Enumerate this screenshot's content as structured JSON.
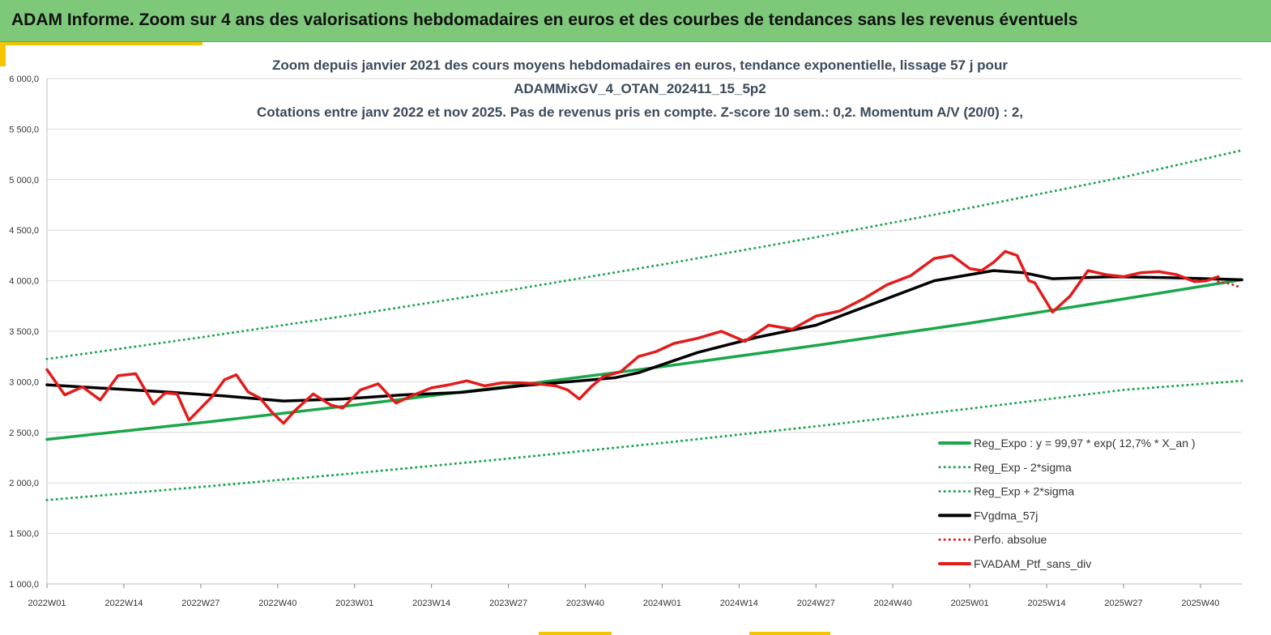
{
  "banner": {
    "title": "ADAM Informe. Zoom sur 4 ans des valorisations hebdomadaires en euros et des courbes de tendances sans les revenus éventuels"
  },
  "colors": {
    "banner_bg": "#7ec87a",
    "accent": "#f5c400",
    "green": "#1aa64a",
    "black": "#000000",
    "red": "#e31b1b"
  },
  "chart_data": {
    "type": "line",
    "title_lines": [
      "Zoom depuis janvier 2021 des cours moyens hebdomadaires  en euros, tendance exponentielle, lissage 57 j pour",
      "ADAMMixGV_4_OTAN_202411_15_5p2",
      "Cotations entre janv 2022 et nov 2025. Pas de revenus pris en compte. Z-score 10 sem.: 0,2. Momentum A/V (20/0) : 2,"
    ],
    "ylim": [
      1000,
      6000
    ],
    "y_ticks": [
      1000,
      1500,
      2000,
      2500,
      3000,
      3500,
      4000,
      4500,
      5000,
      5500,
      6000
    ],
    "y_tick_labels": [
      "1 000,0",
      "1 500,0",
      "2 000,0",
      "2 500,0",
      "3 000,0",
      "3 500,0",
      "4 000,0",
      "4 500,0",
      "5 000,0",
      "5 500,0",
      "6 000,0"
    ],
    "xlim": [
      0,
      202
    ],
    "x_ticks": [
      0,
      13,
      26,
      39,
      52,
      65,
      78,
      91,
      104,
      117,
      130,
      143,
      156,
      169,
      182,
      195
    ],
    "x_tick_labels": [
      "2022W01",
      "2022W14",
      "2022W27",
      "2022W40",
      "2023W01",
      "2023W14",
      "2023W27",
      "2023W40",
      "2024W01",
      "2024W14",
      "2024W27",
      "2024W40",
      "2025W01",
      "2025W14",
      "2025W27",
      "2025W40"
    ],
    "grid": true,
    "legend_position": "bottom-right",
    "series": [
      {
        "name": "Reg_Expo : y = 99,97 * exp( 12,7% *  X_an )",
        "style": "solid",
        "color": "#1aa64a",
        "x": [
          0,
          26,
          52,
          78,
          104,
          130,
          156,
          182,
          202
        ],
        "values": [
          2430,
          2595,
          2770,
          2955,
          3150,
          3360,
          3580,
          3820,
          4010
        ]
      },
      {
        "name": "Reg_Exp - 2*sigma",
        "style": "dotted",
        "color": "#1aa64a",
        "x": [
          0,
          26,
          52,
          78,
          104,
          130,
          156,
          182,
          202
        ],
        "values": [
          1830,
          1960,
          2095,
          2240,
          2395,
          2560,
          2735,
          2920,
          3010
        ]
      },
      {
        "name": "Reg_Exp + 2*sigma",
        "style": "dotted",
        "color": "#1aa64a",
        "x": [
          0,
          26,
          52,
          78,
          104,
          130,
          156,
          182,
          202
        ],
        "values": [
          3225,
          3440,
          3665,
          3905,
          4160,
          4430,
          4720,
          5025,
          5290
        ]
      },
      {
        "name": "FVgdma_57j",
        "style": "solid",
        "color": "#000000",
        "x": [
          0,
          10,
          20,
          30,
          40,
          50,
          60,
          70,
          80,
          90,
          96,
          100,
          104,
          110,
          120,
          130,
          140,
          150,
          160,
          165,
          170,
          180,
          190,
          202
        ],
        "values": [
          2970,
          2935,
          2900,
          2860,
          2810,
          2830,
          2870,
          2895,
          2960,
          3010,
          3040,
          3090,
          3170,
          3290,
          3440,
          3560,
          3780,
          4000,
          4100,
          4080,
          4020,
          4040,
          4030,
          4010
        ]
      },
      {
        "name": "Perfo. absolue",
        "style": "dotted",
        "color": "#e31b1b",
        "x": [
          198,
          200,
          202
        ],
        "values": [
          3990,
          3970,
          3930
        ]
      },
      {
        "name": "FVADAM_Ptf_sans_div",
        "style": "solid",
        "color": "#e31b1b",
        "x": [
          0,
          3,
          6,
          9,
          12,
          15,
          18,
          20,
          22,
          24,
          26,
          28,
          30,
          32,
          34,
          36,
          38,
          40,
          42,
          45,
          48,
          50,
          53,
          56,
          59,
          62,
          65,
          68,
          71,
          74,
          77,
          80,
          83,
          86,
          88,
          90,
          92,
          94,
          97,
          100,
          103,
          106,
          110,
          114,
          118,
          122,
          126,
          130,
          134,
          138,
          142,
          146,
          150,
          153,
          156,
          158,
          160,
          162,
          164,
          166,
          167,
          170,
          173,
          176,
          179,
          182,
          185,
          188,
          191,
          194,
          196,
          198
        ],
        "values": [
          3120,
          2870,
          2950,
          2820,
          3060,
          3080,
          2780,
          2890,
          2880,
          2620,
          2740,
          2860,
          3020,
          3070,
          2900,
          2840,
          2700,
          2590,
          2720,
          2880,
          2770,
          2740,
          2920,
          2980,
          2790,
          2870,
          2940,
          2970,
          3010,
          2960,
          2990,
          2990,
          2980,
          2960,
          2920,
          2830,
          2950,
          3050,
          3100,
          3250,
          3300,
          3380,
          3430,
          3500,
          3400,
          3560,
          3520,
          3650,
          3700,
          3820,
          3960,
          4050,
          4220,
          4250,
          4120,
          4100,
          4180,
          4290,
          4250,
          4000,
          3980,
          3690,
          3850,
          4100,
          4060,
          4040,
          4080,
          4090,
          4060,
          3990,
          4000,
          4040
        ]
      }
    ]
  }
}
